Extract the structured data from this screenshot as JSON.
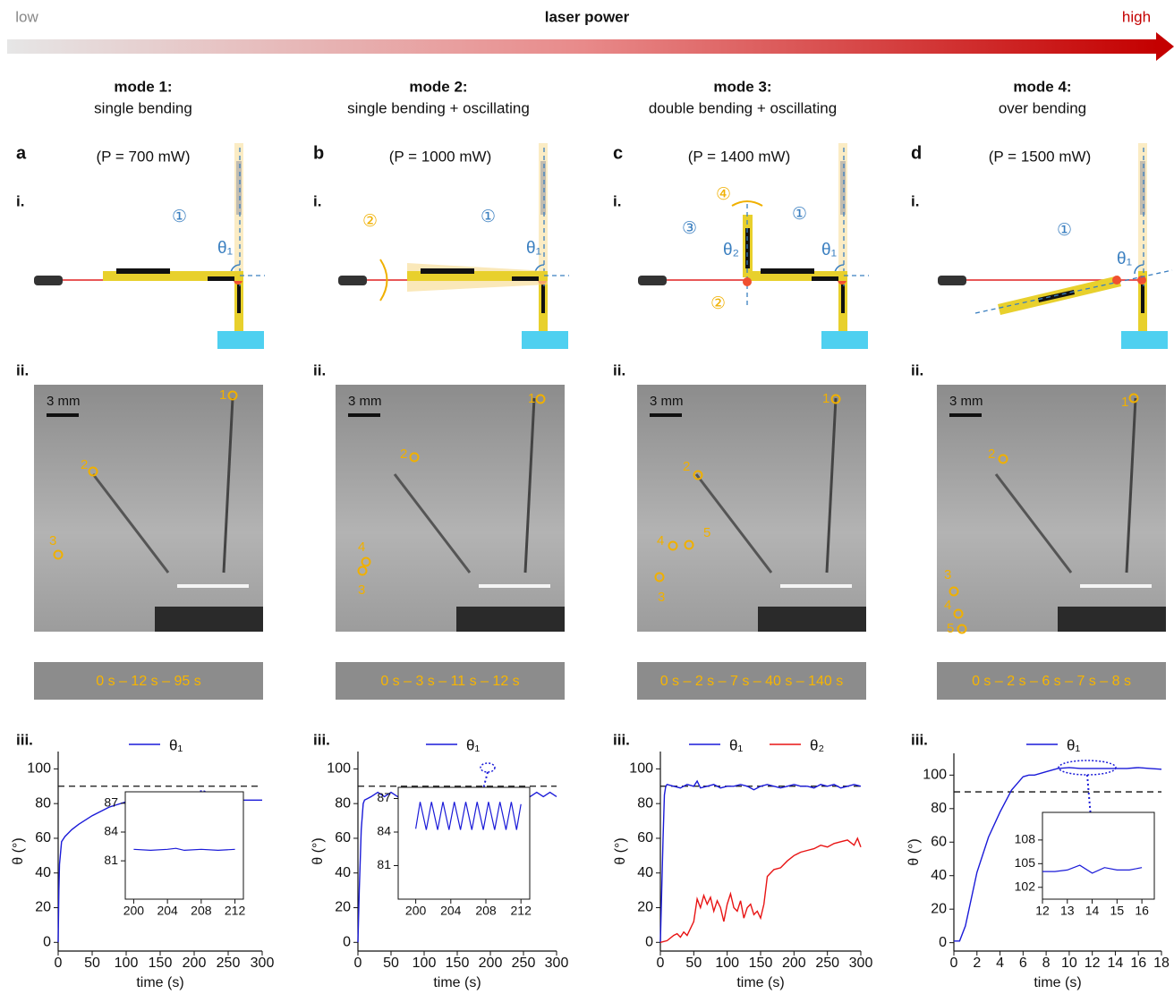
{
  "header": {
    "low": "low",
    "title": "laser power",
    "high": "high"
  },
  "panels": [
    {
      "letter": "a",
      "mode": "mode 1:",
      "description": "single bending",
      "power": "(P = 700 mW)",
      "sub_labels": [
        "i.",
        "ii.",
        "iii."
      ],
      "diagram_labels": [
        "①",
        "θ₁"
      ],
      "scale": "3 mm",
      "photo_labels": [
        "1",
        "2",
        "3"
      ],
      "timeline": "0 s – 12 s – 95 s"
    },
    {
      "letter": "b",
      "mode": "mode 2:",
      "description": "single bending + oscillating",
      "power": "(P = 1000 mW)",
      "sub_labels": [
        "i.",
        "ii.",
        "iii."
      ],
      "diagram_labels": [
        "②",
        "①",
        "θ₁"
      ],
      "scale": "3 mm",
      "photo_labels": [
        "1",
        "2",
        "4",
        "3"
      ],
      "timeline": "0 s – 3 s – 11 s – 12 s"
    },
    {
      "letter": "c",
      "mode": "mode 3:",
      "description": "double bending + oscillating",
      "power": "(P = 1400 mW)",
      "sub_labels": [
        "i.",
        "ii.",
        "iii."
      ],
      "diagram_labels": [
        "④",
        "③",
        "θ₂",
        "①",
        "θ₁",
        "②"
      ],
      "scale": "3 mm",
      "photo_labels": [
        "1",
        "2",
        "4",
        "5",
        "3"
      ],
      "timeline": "0 s – 2 s – 7 s – 40 s – 140 s"
    },
    {
      "letter": "d",
      "mode": "mode 4:",
      "description": "over bending",
      "power": "(P = 1500 mW)",
      "sub_labels": [
        "i.",
        "ii.",
        "iii."
      ],
      "diagram_labels": [
        "①",
        "θ₁"
      ],
      "scale": "3 mm",
      "photo_labels": [
        "1",
        "2",
        "3",
        "4",
        "5"
      ],
      "timeline": "0 s – 2 s – 6 s – 7 s – 8 s"
    }
  ],
  "chart_data": [
    {
      "type": "line",
      "xlabel": "time (s)",
      "ylabel": "θ (°)",
      "xlim": [
        0,
        300
      ],
      "ylim": [
        -5,
        110
      ],
      "xticks": [
        0,
        50,
        100,
        150,
        200,
        250,
        300
      ],
      "yticks": [
        0,
        20,
        40,
        60,
        80,
        100
      ],
      "reference_line": 90,
      "x": [
        0,
        1,
        2,
        5,
        10,
        20,
        30,
        50,
        75,
        100,
        125,
        150,
        175,
        200,
        215,
        225,
        250,
        265,
        300
      ],
      "series": [
        {
          "name": "θ₁",
          "color": "#1a1ad8",
          "values": [
            0,
            30,
            45,
            58,
            61,
            65,
            68,
            73,
            78,
            81,
            82.5,
            83,
            82,
            82,
            82.5,
            82,
            82,
            82,
            82
          ]
        }
      ],
      "inset": {
        "xlim": [
          199,
          213
        ],
        "ylim": [
          77,
          88.2
        ],
        "xticks": [
          200,
          204,
          208,
          212
        ],
        "yticks": [
          81,
          84,
          87
        ],
        "x": [
          200,
          202,
          204,
          205,
          206,
          208,
          210,
          212
        ],
        "values": [
          82.2,
          82.1,
          82.2,
          82.3,
          82.1,
          82.2,
          82.1,
          82.2
        ]
      }
    },
    {
      "type": "line",
      "xlabel": "time (s)",
      "ylabel": "θ (°)",
      "xlim": [
        0,
        300
      ],
      "ylim": [
        -5,
        110
      ],
      "xticks": [
        0,
        50,
        100,
        150,
        200,
        250,
        300
      ],
      "yticks": [
        0,
        20,
        40,
        60,
        80,
        100
      ],
      "reference_line": 90,
      "x": [
        0,
        2,
        5,
        8,
        10,
        15,
        20,
        30,
        40,
        50,
        60,
        70,
        80,
        90,
        100,
        110,
        120,
        130,
        140,
        150,
        160,
        170,
        180,
        190,
        200,
        210,
        220,
        230,
        240,
        250,
        260,
        270,
        280,
        290,
        300
      ],
      "series": [
        {
          "name": "θ₁",
          "color": "#1a1ad8",
          "values": [
            0,
            30,
            65,
            80,
            82,
            83,
            84,
            86.5,
            84,
            86.5,
            84,
            86.5,
            84,
            86.5,
            84,
            86.5,
            84,
            86.5,
            84,
            86.5,
            84,
            86.5,
            84,
            86.5,
            84,
            86.5,
            84,
            86.5,
            84,
            86.5,
            84,
            86.5,
            84,
            86.5,
            84
          ]
        }
      ],
      "inset": {
        "xlim": [
          198,
          213
        ],
        "ylim": [
          78,
          88
        ],
        "xticks": [
          200,
          204,
          208,
          212
        ],
        "yticks": [
          81,
          84,
          87
        ],
        "x": [
          200,
          200.5,
          201.2,
          201.8,
          202.5,
          203.1,
          203.8,
          204.4,
          205.1,
          205.7,
          206.4,
          207,
          207.7,
          208.3,
          209,
          209.6,
          210.3,
          210.9,
          211.5,
          212
        ],
        "values": [
          84.3,
          86.7,
          84.2,
          86.7,
          84.2,
          86.7,
          84.2,
          86.7,
          84.2,
          86.7,
          84.2,
          86.7,
          84.2,
          86.7,
          84.2,
          86.7,
          84.2,
          86.7,
          84.2,
          86.5
        ]
      }
    },
    {
      "type": "line",
      "xlabel": "time (s)",
      "ylabel": "θ (°)",
      "xlim": [
        0,
        300
      ],
      "ylim": [
        -5,
        110
      ],
      "xticks": [
        0,
        50,
        100,
        150,
        200,
        250,
        300
      ],
      "yticks": [
        0,
        20,
        40,
        60,
        80,
        100
      ],
      "reference_line": 90,
      "x": [
        0,
        2,
        4,
        6,
        8,
        10,
        20,
        30,
        40,
        50,
        55,
        60,
        70,
        80,
        90,
        100,
        110,
        120,
        130,
        140,
        150,
        160,
        170,
        180,
        190,
        200,
        210,
        220,
        230,
        240,
        250,
        260,
        270,
        280,
        290,
        300
      ],
      "series": [
        {
          "name": "θ₁",
          "color": "#1a1ad8",
          "values": [
            0,
            30,
            60,
            85,
            90,
            91,
            90,
            89,
            91,
            90,
            93,
            89,
            90,
            91,
            89,
            90,
            90,
            91,
            90,
            88,
            90,
            91,
            90,
            89,
            90,
            91,
            90,
            90,
            89,
            91,
            90,
            91,
            89,
            90,
            91,
            90
          ]
        }
      ],
      "x2": [
        0,
        10,
        20,
        25,
        30,
        35,
        40,
        45,
        50,
        55,
        60,
        65,
        70,
        75,
        80,
        85,
        90,
        95,
        100,
        105,
        110,
        115,
        120,
        125,
        130,
        135,
        140,
        145,
        150,
        155,
        160,
        170,
        180,
        190,
        200,
        210,
        220,
        230,
        240,
        250,
        260,
        270,
        280,
        290,
        295,
        300
      ],
      "series2": [
        {
          "name": "θ₂",
          "color": "#e81414",
          "values": [
            0,
            1,
            4,
            5,
            3,
            6,
            4,
            8,
            12,
            25,
            20,
            27,
            22,
            26,
            18,
            24,
            20,
            12,
            22,
            28,
            20,
            18,
            24,
            14,
            20,
            22,
            16,
            18,
            14,
            22,
            38,
            42,
            43,
            47,
            50,
            52,
            53,
            54,
            56,
            55,
            57,
            58,
            59,
            56,
            60,
            55
          ]
        }
      ]
    },
    {
      "type": "line",
      "xlabel": "time (s)",
      "ylabel": "θ (°)",
      "xlim": [
        0,
        18
      ],
      "ylim": [
        -5,
        113
      ],
      "xticks": [
        0,
        2,
        4,
        6,
        8,
        10,
        12,
        14,
        16,
        18
      ],
      "yticks": [
        0,
        20,
        40,
        60,
        80,
        100
      ],
      "reference_line": 90,
      "x": [
        0,
        0.5,
        1,
        2,
        3,
        4,
        5,
        6,
        6.5,
        7,
        8,
        9,
        10,
        11,
        12,
        13,
        14,
        15,
        16,
        17,
        18
      ],
      "series": [
        {
          "name": "θ₁",
          "color": "#1a1ad8",
          "values": [
            1,
            1,
            10,
            42,
            63,
            78,
            91,
            99,
            100,
            100,
            102,
            104,
            104.5,
            104,
            104,
            104,
            104,
            104,
            104.5,
            104,
            103.5
          ]
        }
      ],
      "inset": {
        "xlim": [
          12,
          16.5
        ],
        "ylim": [
          100.5,
          111.5
        ],
        "xticks": [
          12,
          13,
          14,
          15,
          16
        ],
        "yticks": [
          102,
          105,
          108
        ],
        "x": [
          12,
          12.5,
          13,
          13.5,
          14,
          14.5,
          15,
          15.5,
          16
        ],
        "values": [
          104,
          104,
          104.2,
          104.8,
          103.8,
          104.5,
          104.2,
          104.2,
          104.5
        ]
      }
    }
  ]
}
